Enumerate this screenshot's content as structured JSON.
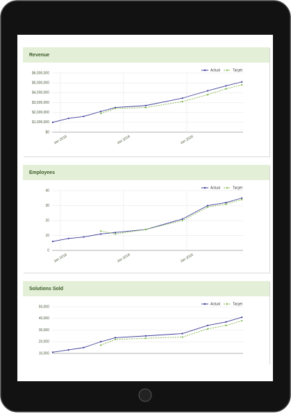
{
  "chart_data": [
    {
      "type": "line",
      "title": "Revenue",
      "x": [
        2017.88,
        2018.13,
        2018.37,
        2018.64,
        2018.87,
        2019.35,
        2019.93,
        2020.33,
        2020.62,
        2020.87
      ],
      "xlim": [
        2017.87,
        2020.89
      ],
      "xticks": [
        {
          "value": 2018,
          "label": "Jan 2018"
        },
        {
          "value": 2019,
          "label": "Jan 2019"
        },
        {
          "value": 2020,
          "label": "Jan 2020"
        }
      ],
      "ylim": [
        0,
        6000000
      ],
      "yticks": [
        {
          "value": 0,
          "label": "$0"
        },
        {
          "value": 1000000,
          "label": "$1,000,000"
        },
        {
          "value": 2000000,
          "label": "$2,000,000"
        },
        {
          "value": 3000000,
          "label": "$3,000,000"
        },
        {
          "value": 4000000,
          "label": "$4,000,000"
        },
        {
          "value": 5000000,
          "label": "$5,000,000"
        },
        {
          "value": 6000000,
          "label": "$6,000,000"
        }
      ],
      "grid": true,
      "legend": "top-right",
      "series": [
        {
          "name": "Actual",
          "color": "#3b3b98",
          "line_style": "solid",
          "values": [
            1000000,
            1400000,
            1600000,
            2100000,
            2500000,
            2700000,
            3450000,
            4200000,
            4700000,
            5100000
          ]
        },
        {
          "name": "Target",
          "color": "#7cb342",
          "line_style": "dashed",
          "values": [
            null,
            null,
            null,
            1900000,
            2400000,
            2500000,
            3100000,
            3800000,
            4400000,
            4800000
          ]
        }
      ]
    },
    {
      "type": "line",
      "title": "Employees",
      "x": [
        2017.88,
        2018.13,
        2018.37,
        2018.64,
        2018.87,
        2019.35,
        2019.93,
        2020.33,
        2020.62,
        2020.87
      ],
      "xlim": [
        2017.87,
        2020.89
      ],
      "xticks": [
        {
          "value": 2018,
          "label": "Jan 2018"
        },
        {
          "value": 2019,
          "label": "Jan 2019"
        },
        {
          "value": 2020,
          "label": "Jan 2020"
        }
      ],
      "ylim": [
        0,
        40
      ],
      "yticks": [
        0,
        10,
        20,
        30,
        40
      ],
      "grid": true,
      "legend": "top-right",
      "series": [
        {
          "name": "Actual",
          "color": "#3b3b98",
          "line_style": "solid",
          "values": [
            6,
            8,
            9,
            11,
            12,
            14,
            21,
            30,
            32,
            35
          ]
        },
        {
          "name": "Target",
          "color": "#7cb342",
          "line_style": "dashed",
          "values": [
            null,
            null,
            null,
            13,
            11,
            14,
            20,
            29,
            31,
            34
          ]
        }
      ]
    },
    {
      "type": "line",
      "title": "Solutions Sold",
      "x": [
        2017.88,
        2018.13,
        2018.37,
        2018.64,
        2018.87,
        2019.35,
        2019.93,
        2020.33,
        2020.62,
        2020.87
      ],
      "xlim": [
        2017.87,
        2020.89
      ],
      "ylim": [
        10000,
        50000
      ],
      "yticks": [
        {
          "value": 10000,
          "label": "10,000"
        },
        {
          "value": 20000,
          "label": "20,000"
        },
        {
          "value": 30000,
          "label": "30,000"
        },
        {
          "value": 40000,
          "label": "40,000"
        },
        {
          "value": 50000,
          "label": "50,000"
        }
      ],
      "grid": true,
      "legend": "top-right",
      "series": [
        {
          "name": "Actual",
          "color": "#3b3b98",
          "line_style": "solid",
          "values": [
            11000,
            13000,
            15000,
            20000,
            23500,
            25000,
            27000,
            34000,
            37000,
            41000
          ]
        },
        {
          "name": "Target",
          "color": "#7cb342",
          "line_style": "dashed",
          "values": [
            null,
            null,
            null,
            17000,
            22000,
            23000,
            24000,
            31000,
            34000,
            38000
          ]
        }
      ]
    }
  ]
}
